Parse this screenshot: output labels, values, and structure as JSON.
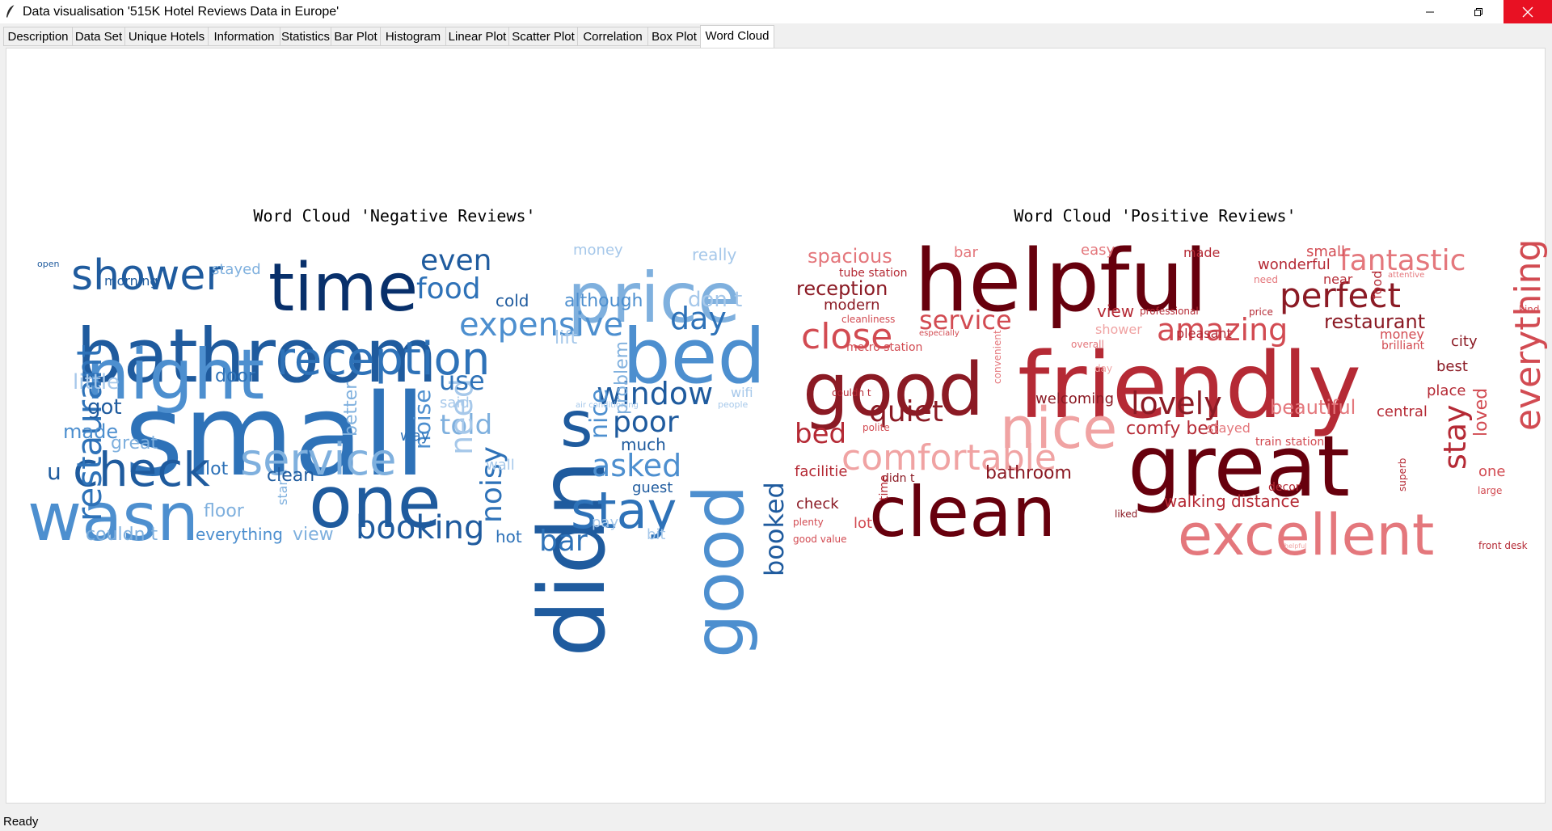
{
  "window": {
    "title": "Data visualisation '515K Hotel Reviews Data in Europe'",
    "icons": [
      "feather-app-icon",
      "minimize-icon",
      "maximize-icon",
      "close-icon"
    ]
  },
  "tabs": [
    "Description",
    "Data Set",
    "Unique Hotels",
    "Information",
    "Statistics",
    "Bar Plot",
    "Histogram",
    "Linear Plot",
    "Scatter Plot",
    "Correlation",
    "Box Plot",
    "Word Cloud"
  ],
  "active_tab": "Word Cloud",
  "status": "Ready",
  "colors": {
    "negative_palette": [
      "#08306b",
      "#1f5b9e",
      "#2e72b8",
      "#4d8fcf",
      "#7fb0de",
      "#a6c8ea"
    ],
    "positive_palette": [
      "#67000d",
      "#8b1a24",
      "#b52a35",
      "#d24b52",
      "#e4777c",
      "#f0a3a3"
    ],
    "close_button": "#e81123"
  },
  "clouds": {
    "negative": {
      "title": "Word Cloud 'Negative Reviews'",
      "words": [
        "small",
        "bathroom",
        "didn",
        "time",
        "price",
        "bed",
        "night",
        "wasn",
        "one",
        "reception",
        "shower",
        "check",
        "service",
        "good",
        "stay",
        "expensive",
        "window",
        "booking",
        "food",
        "poor",
        "asked",
        "restaurant",
        "even",
        "noisy",
        "nice",
        "day",
        "told",
        "booked",
        "bar",
        "need",
        "s",
        "use",
        "little",
        "noise",
        "got",
        "door",
        "made",
        "great",
        "lot",
        "better",
        "problem",
        "cold",
        "although",
        "don t",
        "lift",
        "clean",
        "floor",
        "view",
        "everything",
        "couldn t",
        "hot",
        "pay",
        "much",
        "guest",
        "wall",
        "bit",
        "really",
        "money",
        "stayed",
        "morning",
        "said",
        "way",
        "wifi",
        "people",
        "u",
        "star",
        "open",
        "air conditioning"
      ]
    },
    "positive": {
      "title": "Word Cloud 'Positive Reviews'",
      "words": [
        "helpful",
        "friendly",
        "great",
        "good",
        "clean",
        "excellent",
        "nice",
        "comfortable",
        "perfect",
        "close",
        "fantastic",
        "amazing",
        "lovely",
        "quiet",
        "service",
        "reception",
        "spacious",
        "restaurant",
        "bed",
        "beautiful",
        "comfy bed",
        "bathroom",
        "everything",
        "stay",
        "walking distance",
        "welcoming",
        "view",
        "modern",
        "central",
        "loved",
        "city",
        "best",
        "place",
        "money",
        "pleasant",
        "wonderful",
        "small",
        "made",
        "easy",
        "bar",
        "food",
        "near",
        "tube station",
        "metro station",
        "convenient",
        "polite",
        "check",
        "lot",
        "plenty",
        "good value",
        "shower",
        "overall",
        "day",
        "stayed",
        "one",
        "superb",
        "decor",
        "front desk",
        "train station",
        "liked",
        "facilitie",
        "didn t",
        "couldn t",
        "large",
        "kind",
        "professional",
        "price",
        "helpful",
        "attentive",
        "brilliant",
        "cleanliness",
        "especially",
        "time",
        "need"
      ]
    }
  }
}
